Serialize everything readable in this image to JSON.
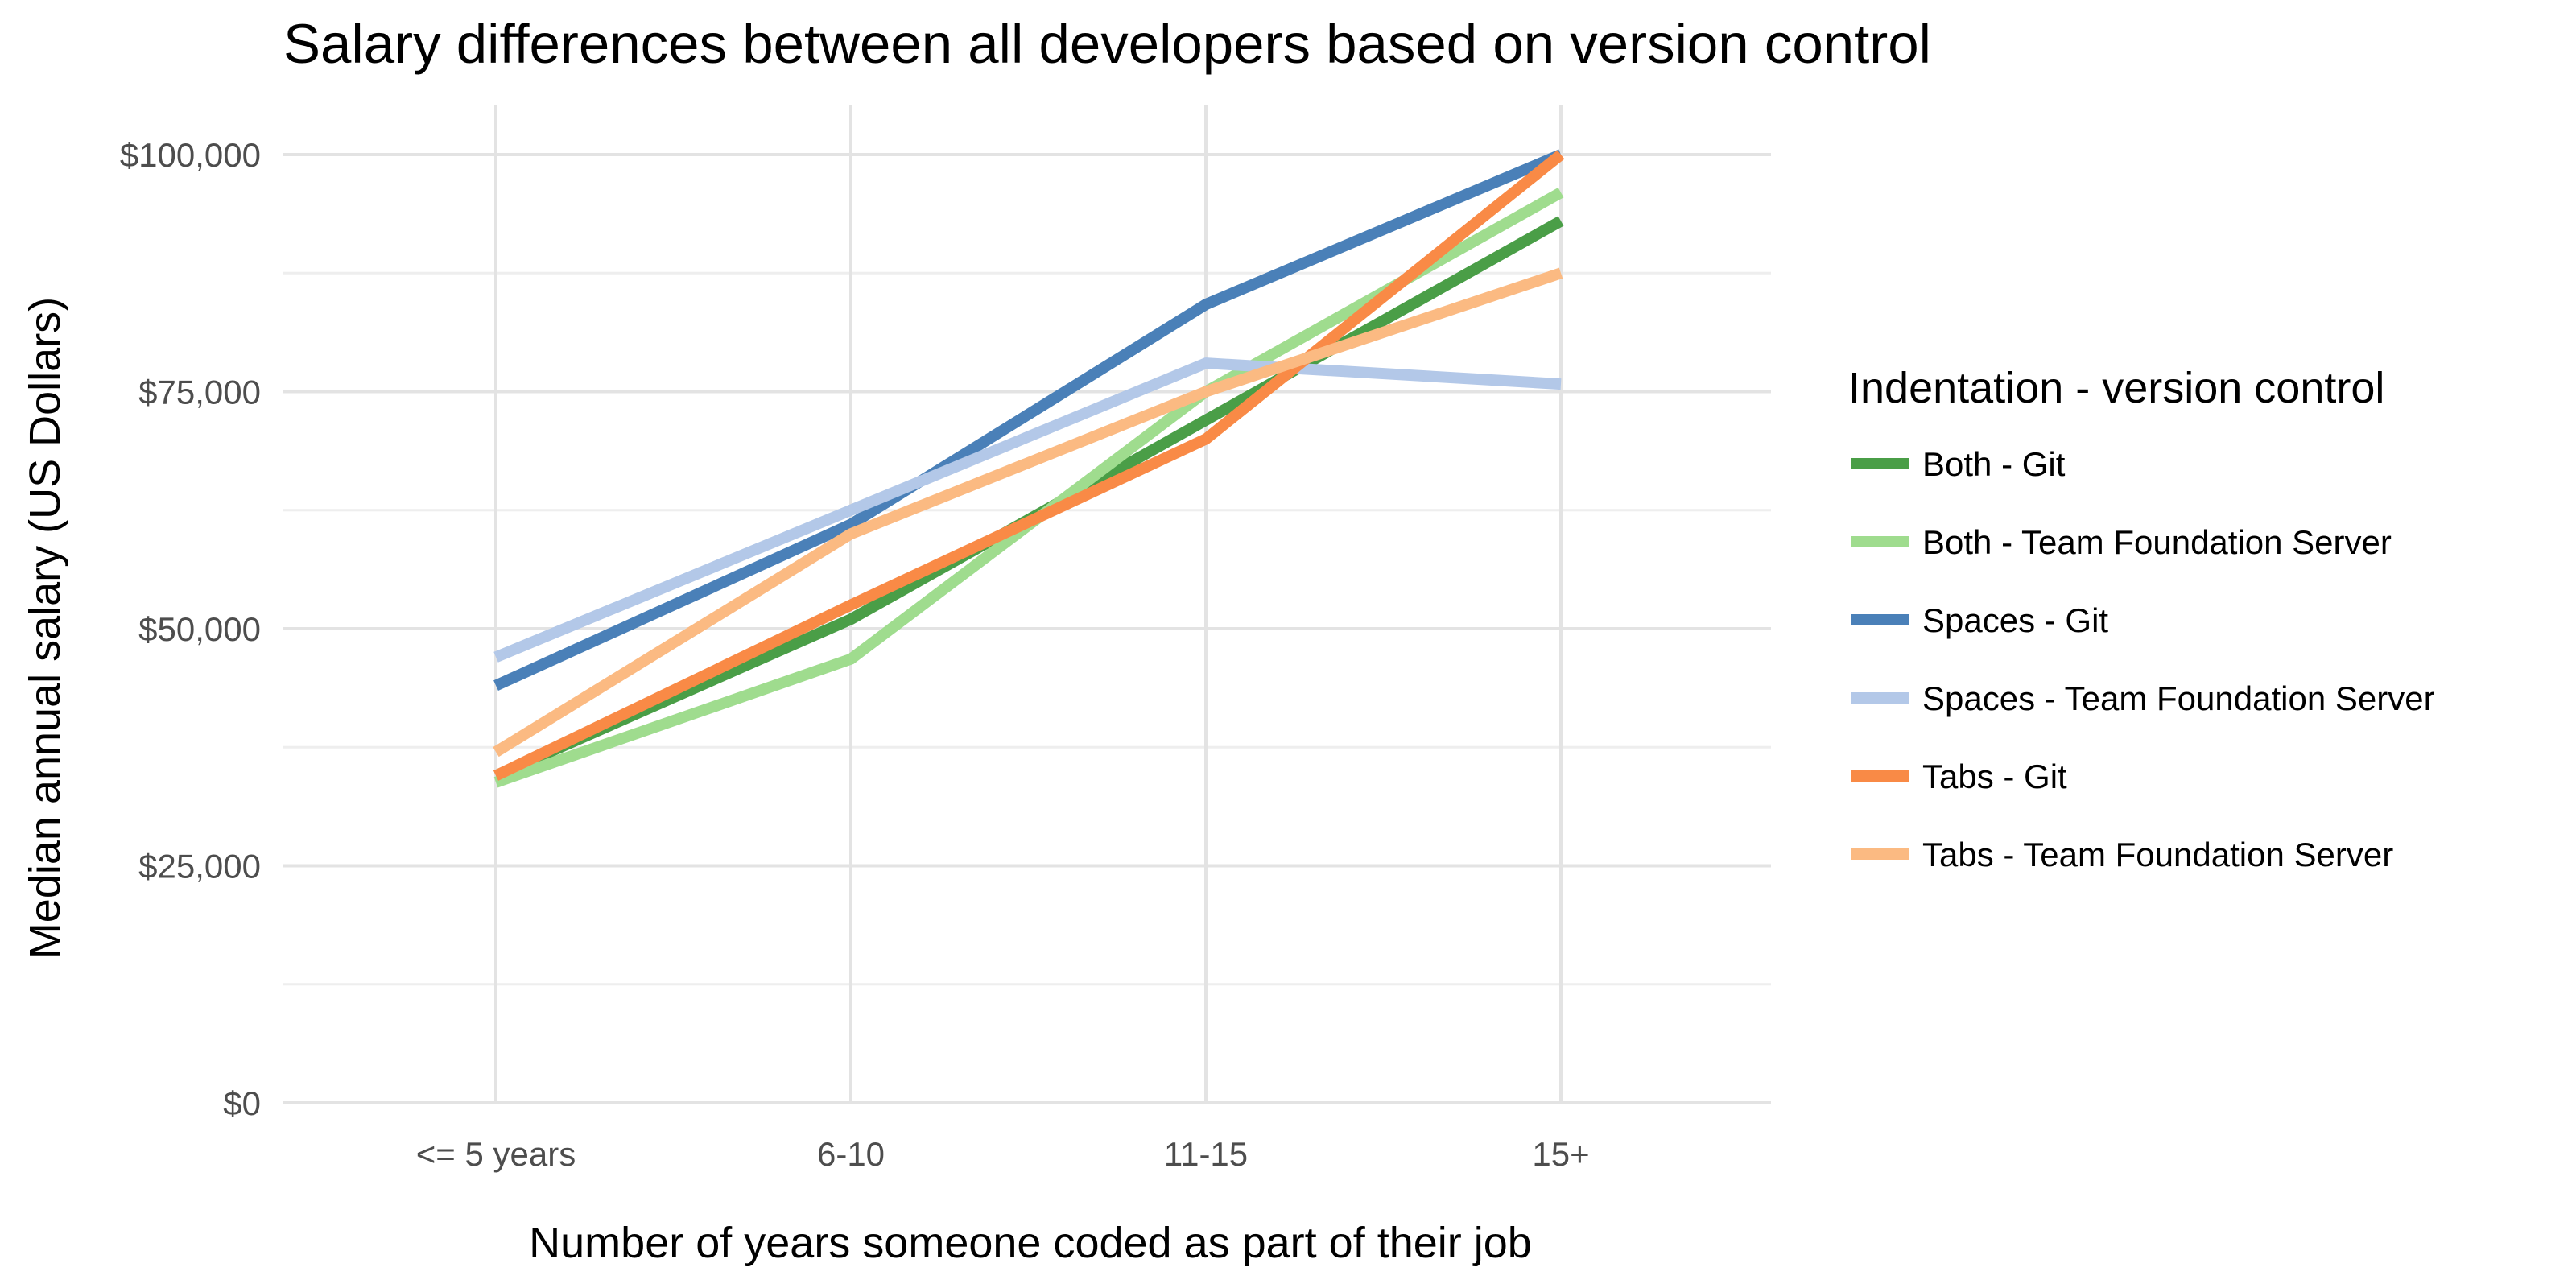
{
  "chart_data": {
    "type": "line",
    "title": "Salary differences between all developers based on version control",
    "xlabel": "Number of years someone coded as part of their job",
    "ylabel": "Median annual salary (US Dollars)",
    "categories": [
      "<= 5 years",
      "6-10",
      "11-15",
      "15+"
    ],
    "ylim": [
      0,
      100000
    ],
    "y_ticks": [
      0,
      25000,
      50000,
      75000,
      100000
    ],
    "y_tick_labels": [
      "$0",
      "$25,000",
      "$50,000",
      "$75,000",
      "$100,000"
    ],
    "grid": true,
    "legend_title": "Indentation - version control",
    "legend_position": "right",
    "series": [
      {
        "name": "Both - Git",
        "color": "#4a9e47",
        "values": [
          34500,
          51000,
          72000,
          93000
        ]
      },
      {
        "name": "Both - Team Foundation Server",
        "color": "#9fdc8e",
        "values": [
          33800,
          46800,
          75000,
          96000
        ]
      },
      {
        "name": "Spaces - Git",
        "color": "#4a80b8",
        "values": [
          44000,
          61000,
          84200,
          100000
        ]
      },
      {
        "name": "Spaces - Team Foundation Server",
        "color": "#b3c8e8",
        "values": [
          47000,
          62500,
          78000,
          75800
        ]
      },
      {
        "name": "Tabs - Git",
        "color": "#f98a46",
        "values": [
          34500,
          52500,
          70000,
          100000
        ]
      },
      {
        "name": "Tabs - Team Foundation Server",
        "color": "#fbba82",
        "values": [
          37000,
          60000,
          75000,
          87500
        ]
      }
    ]
  }
}
